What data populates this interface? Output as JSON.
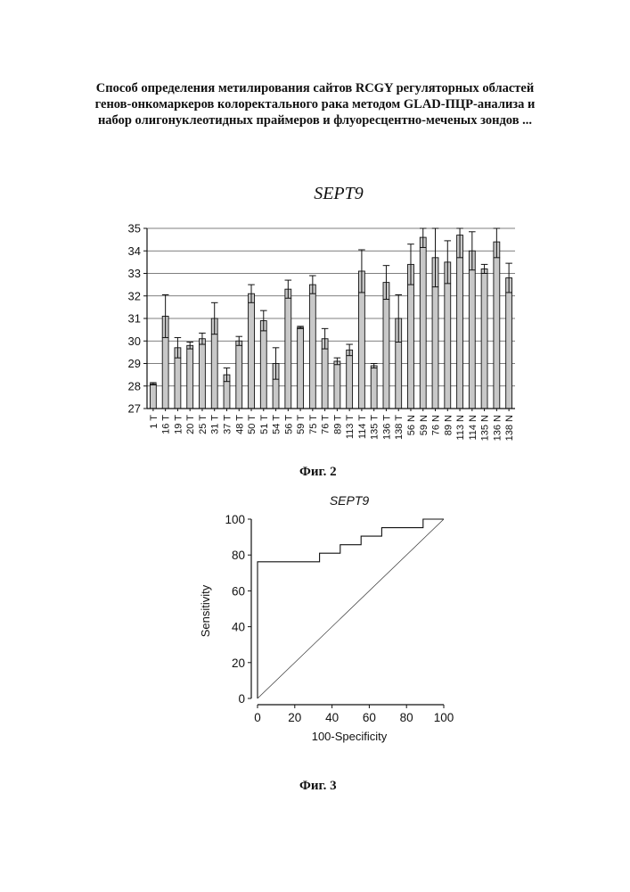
{
  "header": {
    "lines": [
      "Способ определения метилирования сайтов RCGY регуляторных областей",
      "генов-онкомаркеров колоректального рака  методом GLAD-ПЦР-анализа и",
      "набор олигонуклеотидных праймеров и флуоресцентно-меченых зондов ..."
    ]
  },
  "figures": {
    "fig2_caption": "Фиг. 2",
    "fig3_caption": "Фиг. 3"
  },
  "chart_data": [
    {
      "type": "bar",
      "title": "SEPT9",
      "xlabel": "",
      "ylabel": "",
      "ylim": [
        27,
        35
      ],
      "yticks": [
        27,
        28,
        29,
        30,
        31,
        32,
        33,
        34,
        35
      ],
      "grid": true,
      "categories": [
        "1 T",
        "16 T",
        "19 T",
        "20 T",
        "25 T",
        "31 T",
        "37 T",
        "48 T",
        "50 T",
        "51 T",
        "54 T",
        "56 T",
        "59 T",
        "75 T",
        "76 T",
        "89 T",
        "113 T",
        "114 T",
        "135 T",
        "136 T",
        "138 T",
        "56 N",
        "59 N",
        "76 N",
        "89 N",
        "113 N",
        "114 N",
        "135 N",
        "136 N",
        "138 N"
      ],
      "values": [
        28.1,
        31.1,
        29.7,
        29.8,
        30.1,
        31.0,
        28.5,
        30.0,
        32.1,
        30.9,
        29.0,
        32.3,
        30.6,
        32.5,
        30.1,
        29.1,
        29.6,
        33.1,
        28.9,
        32.6,
        31.0,
        33.4,
        34.6,
        33.7,
        33.5,
        34.7,
        34.0,
        33.2,
        34.4,
        32.8
      ],
      "errors": [
        0.05,
        0.95,
        0.45,
        0.15,
        0.25,
        0.7,
        0.3,
        0.2,
        0.4,
        0.45,
        0.7,
        0.4,
        0.05,
        0.4,
        0.45,
        0.15,
        0.25,
        0.95,
        0.1,
        0.75,
        1.05,
        0.9,
        0.45,
        1.3,
        0.95,
        1.0,
        0.85,
        0.2,
        0.7,
        0.65
      ]
    },
    {
      "type": "line",
      "title": "SEPT9",
      "xlabel": "100-Specificity",
      "ylabel": "Sensitivity",
      "xlim": [
        0,
        100
      ],
      "ylim": [
        0,
        100
      ],
      "xticks": [
        0,
        20,
        40,
        60,
        80,
        100
      ],
      "yticks": [
        0,
        20,
        40,
        60,
        80,
        100
      ],
      "series": [
        {
          "x": [
            0,
            0,
            33.3,
            33.3,
            44.4,
            44.4,
            55.6,
            55.6,
            66.7,
            66.7,
            88.9,
            88.9,
            100
          ],
          "y": [
            0,
            76.2,
            76.2,
            81,
            81,
            85.7,
            85.7,
            90.5,
            90.5,
            95.2,
            95.2,
            100,
            100
          ]
        },
        {
          "x": [
            0,
            100
          ],
          "y": [
            0,
            100
          ]
        }
      ]
    }
  ]
}
